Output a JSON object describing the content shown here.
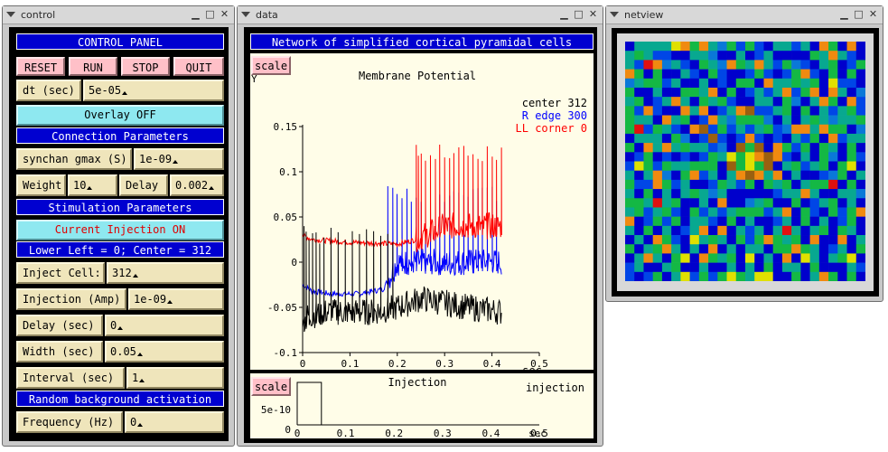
{
  "windows": {
    "control": {
      "title": "control"
    },
    "data": {
      "title": "data"
    },
    "netview": {
      "title": "netview"
    }
  },
  "icons": {
    "menu": "triangle-menu-icon",
    "minimize": "minimize-icon",
    "maximize": "maximize-icon",
    "close": "close-icon"
  },
  "glyphs": {
    "minimize": "▁",
    "maximize": "□",
    "close": "✕"
  },
  "control": {
    "panel_title": "CONTROL PANEL",
    "buttons": {
      "reset": "RESET",
      "run": "RUN",
      "stop": "STOP",
      "quit": "QUIT"
    },
    "dt": {
      "label": "dt (sec)",
      "value": "5e-05"
    },
    "overlay": "Overlay OFF",
    "connection_header": "Connection Parameters",
    "synchan": {
      "label": "synchan gmax (S)",
      "value": "1e-09"
    },
    "weight": {
      "label": "Weight",
      "value": "10"
    },
    "delay_conn": {
      "label": "Delay",
      "value": "0.002"
    },
    "stimulation_header": "Stimulation Parameters",
    "current_injection": "Current Injection ON",
    "lower_left": "Lower Left = 0; Center = 312",
    "inject_cell": {
      "label": "Inject Cell:",
      "value": "312"
    },
    "injection_amp": {
      "label": "Injection (Amp)",
      "value": "1e-09"
    },
    "delay_sec": {
      "label": "Delay (sec)",
      "value": "0"
    },
    "width_sec": {
      "label": "Width (sec)",
      "value": "0.05"
    },
    "interval_sec": {
      "label": "Interval (sec)",
      "value": "1"
    },
    "random_header": "Random background activation",
    "frequency": {
      "label": "Frequency (Hz)",
      "value": "0"
    }
  },
  "data": {
    "header": "Network of simplified cortical pyramidal cells",
    "scale_label": "scale",
    "scale_label2": "scale",
    "y_label": "Y",
    "graph_title": "Membrane Potential",
    "x_unit": "sec",
    "legend": {
      "center": "center 312",
      "redge": "R edge 300",
      "llcorner": "LL corner 0"
    },
    "injection_title": "Injection",
    "injection_legend": "injection",
    "injection_ytick": "5e-10",
    "injection_ytick0": "0",
    "injection_xunit": "sec"
  },
  "chart_data": [
    {
      "type": "line",
      "title": "Membrane Potential",
      "xlabel": "sec",
      "ylabel": "Y",
      "xlim": [
        0,
        0.5
      ],
      "ylim": [
        -0.1,
        0.15
      ],
      "x_ticks": [
        "0",
        "0.1",
        "0.2",
        "0.3",
        "0.4",
        "0.5"
      ],
      "y_ticks": [
        "-0.1",
        "-0.05",
        "0",
        "0.05",
        "0.1",
        "0.15"
      ],
      "grid": false,
      "legend_position": "top-right",
      "colors": {
        "center": "#000000",
        "redge": "#0000ff",
        "llcorner": "#ff0000"
      },
      "series": [
        {
          "name": "center 312",
          "color": "#000000",
          "points": [
            [
              0,
              -0.07
            ],
            [
              0.01,
              -0.06
            ],
            [
              0.05,
              -0.055
            ],
            [
              0.1,
              -0.055
            ],
            [
              0.15,
              -0.055
            ],
            [
              0.2,
              -0.05
            ],
            [
              0.25,
              -0.04
            ],
            [
              0.3,
              -0.045
            ],
            [
              0.35,
              -0.05
            ],
            [
              0.42,
              -0.055
            ]
          ],
          "spike_x": [
            0.003,
            0.008,
            0.014,
            0.021,
            0.028,
            0.036,
            0.045,
            0.06,
            0.075,
            0.09,
            0.105,
            0.12,
            0.135,
            0.15,
            0.165,
            0.18,
            0.19
          ],
          "spike_peak": 0.04
        },
        {
          "name": "R edge 300",
          "color": "#0000ff",
          "points": [
            [
              0,
              -0.025
            ],
            [
              0.02,
              -0.032
            ],
            [
              0.06,
              -0.035
            ],
            [
              0.12,
              -0.035
            ],
            [
              0.17,
              -0.03
            ],
            [
              0.2,
              0.0
            ],
            [
              0.3,
              0.0
            ],
            [
              0.42,
              0.0
            ]
          ],
          "spike_x": [
            0.18,
            0.19,
            0.2,
            0.21,
            0.22,
            0.23,
            0.24,
            0.25,
            0.26,
            0.27,
            0.28,
            0.29,
            0.3,
            0.31,
            0.32,
            0.33,
            0.34,
            0.35,
            0.36,
            0.37,
            0.38,
            0.39,
            0.4,
            0.41
          ],
          "spike_peak": 0.085
        },
        {
          "name": "LL corner 0",
          "color": "#ff0000",
          "points": [
            [
              0,
              0.03
            ],
            [
              0.02,
              0.025
            ],
            [
              0.1,
              0.022
            ],
            [
              0.2,
              0.02
            ],
            [
              0.24,
              0.025
            ],
            [
              0.3,
              0.04
            ],
            [
              0.42,
              0.04
            ]
          ],
          "spike_x": [
            0.24,
            0.245,
            0.25,
            0.26,
            0.27,
            0.28,
            0.29,
            0.3,
            0.31,
            0.32,
            0.33,
            0.34,
            0.35,
            0.36,
            0.37,
            0.38,
            0.39,
            0.4,
            0.41,
            0.42
          ],
          "spike_peak": 0.13
        }
      ]
    },
    {
      "type": "line",
      "title": "Injection",
      "xlabel": "sec",
      "xlim": [
        0,
        0.5
      ],
      "ylim": [
        0,
        1e-09
      ],
      "x_ticks": [
        "0",
        "0.1",
        "0.2",
        "0.3",
        "0.4",
        "0.5"
      ],
      "y_ticks": [
        "0",
        "5e-10"
      ],
      "series": [
        {
          "name": "injection",
          "color": "#000000",
          "points": [
            [
              0,
              0
            ],
            [
              0,
              1e-09
            ],
            [
              0.05,
              1e-09
            ],
            [
              0.05,
              0
            ],
            [
              0.5,
              0
            ]
          ]
        }
      ]
    }
  ],
  "netview": {
    "colors": [
      "#0000cc",
      "#0046e6",
      "#0a78d8",
      "#08a890",
      "#14b844",
      "#e0e000",
      "#f08a10",
      "#e01010",
      "#9a6010"
    ],
    "grid": [
      [
        0,
        3,
        3,
        3,
        3,
        5,
        6,
        4,
        6,
        3,
        2,
        4,
        1,
        4,
        1,
        0,
        3,
        3,
        1,
        3,
        0,
        6,
        4,
        0,
        6,
        0
      ],
      [
        3,
        4,
        3,
        1,
        1,
        0,
        0,
        3,
        3,
        2,
        0,
        0,
        3,
        0,
        1,
        3,
        0,
        0,
        0,
        0,
        4,
        3,
        6,
        3,
        1,
        0
      ],
      [
        3,
        1,
        7,
        6,
        2,
        3,
        1,
        0,
        4,
        3,
        2,
        6,
        4,
        3,
        6,
        3,
        1,
        4,
        2,
        1,
        0,
        3,
        4,
        0,
        1,
        4
      ],
      [
        6,
        4,
        0,
        4,
        0,
        0,
        3,
        1,
        0,
        4,
        1,
        0,
        0,
        1,
        4,
        1,
        0,
        1,
        4,
        6,
        1,
        0,
        4,
        0,
        4,
        0
      ],
      [
        2,
        3,
        4,
        4,
        1,
        3,
        0,
        0,
        3,
        0,
        1,
        0,
        4,
        4,
        0,
        6,
        3,
        3,
        4,
        3,
        4,
        0,
        5,
        1,
        1,
        0
      ],
      [
        4,
        0,
        0,
        3,
        0,
        0,
        4,
        4,
        3,
        6,
        0,
        4,
        0,
        1,
        3,
        1,
        3,
        6,
        1,
        4,
        6,
        0,
        6,
        3,
        0,
        2
      ],
      [
        3,
        4,
        0,
        1,
        3,
        6,
        3,
        0,
        4,
        3,
        4,
        1,
        0,
        0,
        3,
        3,
        0,
        4,
        2,
        0,
        3,
        6,
        4,
        0,
        6,
        1
      ],
      [
        4,
        1,
        6,
        1,
        0,
        0,
        6,
        3,
        6,
        0,
        1,
        3,
        6,
        8,
        1,
        1,
        3,
        4,
        0,
        4,
        0,
        3,
        1,
        3,
        4,
        1
      ],
      [
        4,
        3,
        3,
        0,
        6,
        3,
        4,
        0,
        1,
        6,
        3,
        2,
        4,
        4,
        4,
        2,
        0,
        3,
        0,
        3,
        4,
        3,
        2,
        3,
        3,
        4
      ],
      [
        4,
        7,
        1,
        4,
        3,
        1,
        0,
        6,
        8,
        1,
        4,
        1,
        3,
        1,
        3,
        4,
        1,
        2,
        6,
        6,
        3,
        6,
        4,
        4,
        0,
        2
      ],
      [
        0,
        3,
        3,
        3,
        0,
        4,
        2,
        0,
        1,
        8,
        1,
        0,
        1,
        6,
        1,
        0,
        1,
        0,
        3,
        1,
        4,
        0,
        6,
        1,
        3,
        3
      ],
      [
        4,
        0,
        6,
        3,
        6,
        3,
        4,
        3,
        3,
        1,
        2,
        0,
        8,
        4,
        8,
        0,
        6,
        4,
        1,
        4,
        0,
        4,
        3,
        0,
        4,
        0
      ],
      [
        0,
        1,
        4,
        0,
        1,
        0,
        1,
        0,
        1,
        4,
        3,
        5,
        4,
        5,
        6,
        8,
        6,
        1,
        0,
        3,
        0,
        4,
        2,
        0,
        4,
        1
      ],
      [
        1,
        5,
        4,
        1,
        4,
        3,
        3,
        4,
        4,
        4,
        0,
        8,
        4,
        5,
        4,
        8,
        0,
        3,
        4,
        1,
        3,
        4,
        0,
        4,
        5,
        0
      ],
      [
        3,
        0,
        3,
        6,
        2,
        0,
        4,
        6,
        1,
        3,
        0,
        3,
        6,
        8,
        6,
        3,
        6,
        0,
        3,
        0,
        0,
        1,
        2,
        4,
        0,
        3
      ],
      [
        4,
        1,
        1,
        6,
        4,
        1,
        3,
        0,
        0,
        1,
        4,
        3,
        1,
        4,
        0,
        4,
        3,
        4,
        0,
        3,
        4,
        4,
        7,
        0,
        4,
        0
      ],
      [
        3,
        0,
        4,
        0,
        3,
        0,
        3,
        4,
        3,
        2,
        3,
        0,
        0,
        0,
        0,
        0,
        1,
        3,
        3,
        6,
        3,
        0,
        0,
        3,
        3,
        2
      ],
      [
        4,
        4,
        3,
        7,
        3,
        4,
        0,
        0,
        3,
        0,
        6,
        0,
        0,
        2,
        3,
        4,
        0,
        0,
        4,
        0,
        1,
        3,
        4,
        0,
        3,
        0
      ],
      [
        3,
        4,
        1,
        3,
        4,
        1,
        0,
        4,
        1,
        3,
        1,
        3,
        4,
        4,
        4,
        1,
        3,
        6,
        0,
        4,
        1,
        0,
        4,
        1,
        4,
        6
      ],
      [
        6,
        0,
        1,
        4,
        1,
        4,
        0,
        3,
        3,
        1,
        0,
        4,
        0,
        3,
        0,
        0,
        1,
        3,
        0,
        4,
        0,
        3,
        0,
        1,
        4,
        0
      ],
      [
        3,
        0,
        4,
        0,
        3,
        0,
        1,
        3,
        6,
        0,
        6,
        0,
        3,
        1,
        3,
        0,
        3,
        7,
        3,
        0,
        3,
        4,
        0,
        4,
        3,
        0
      ],
      [
        0,
        3,
        0,
        6,
        4,
        1,
        0,
        5,
        3,
        4,
        3,
        0,
        4,
        1,
        4,
        6,
        4,
        3,
        4,
        0,
        6,
        0,
        0,
        6,
        0,
        3
      ],
      [
        4,
        0,
        3,
        4,
        6,
        3,
        0,
        3,
        0,
        6,
        0,
        3,
        0,
        3,
        3,
        0,
        4,
        4,
        6,
        4,
        3,
        0,
        1,
        3,
        0,
        4
      ],
      [
        0,
        3,
        6,
        3,
        0,
        4,
        5,
        0,
        6,
        4,
        3,
        4,
        0,
        5,
        0,
        3,
        0,
        6,
        0,
        5,
        3,
        0,
        3,
        4,
        5,
        0
      ],
      [
        1,
        3,
        0,
        0,
        3,
        4,
        0,
        0,
        3,
        0,
        0,
        3,
        0,
        3,
        0,
        4,
        0,
        3,
        3,
        0,
        4,
        0,
        0,
        0,
        3,
        1
      ],
      [
        1,
        0,
        1,
        4,
        0,
        3,
        5,
        1,
        4,
        1,
        4,
        5,
        4,
        3,
        5,
        5,
        0,
        0,
        4,
        0,
        3,
        6,
        4,
        0,
        4,
        0
      ]
    ]
  }
}
